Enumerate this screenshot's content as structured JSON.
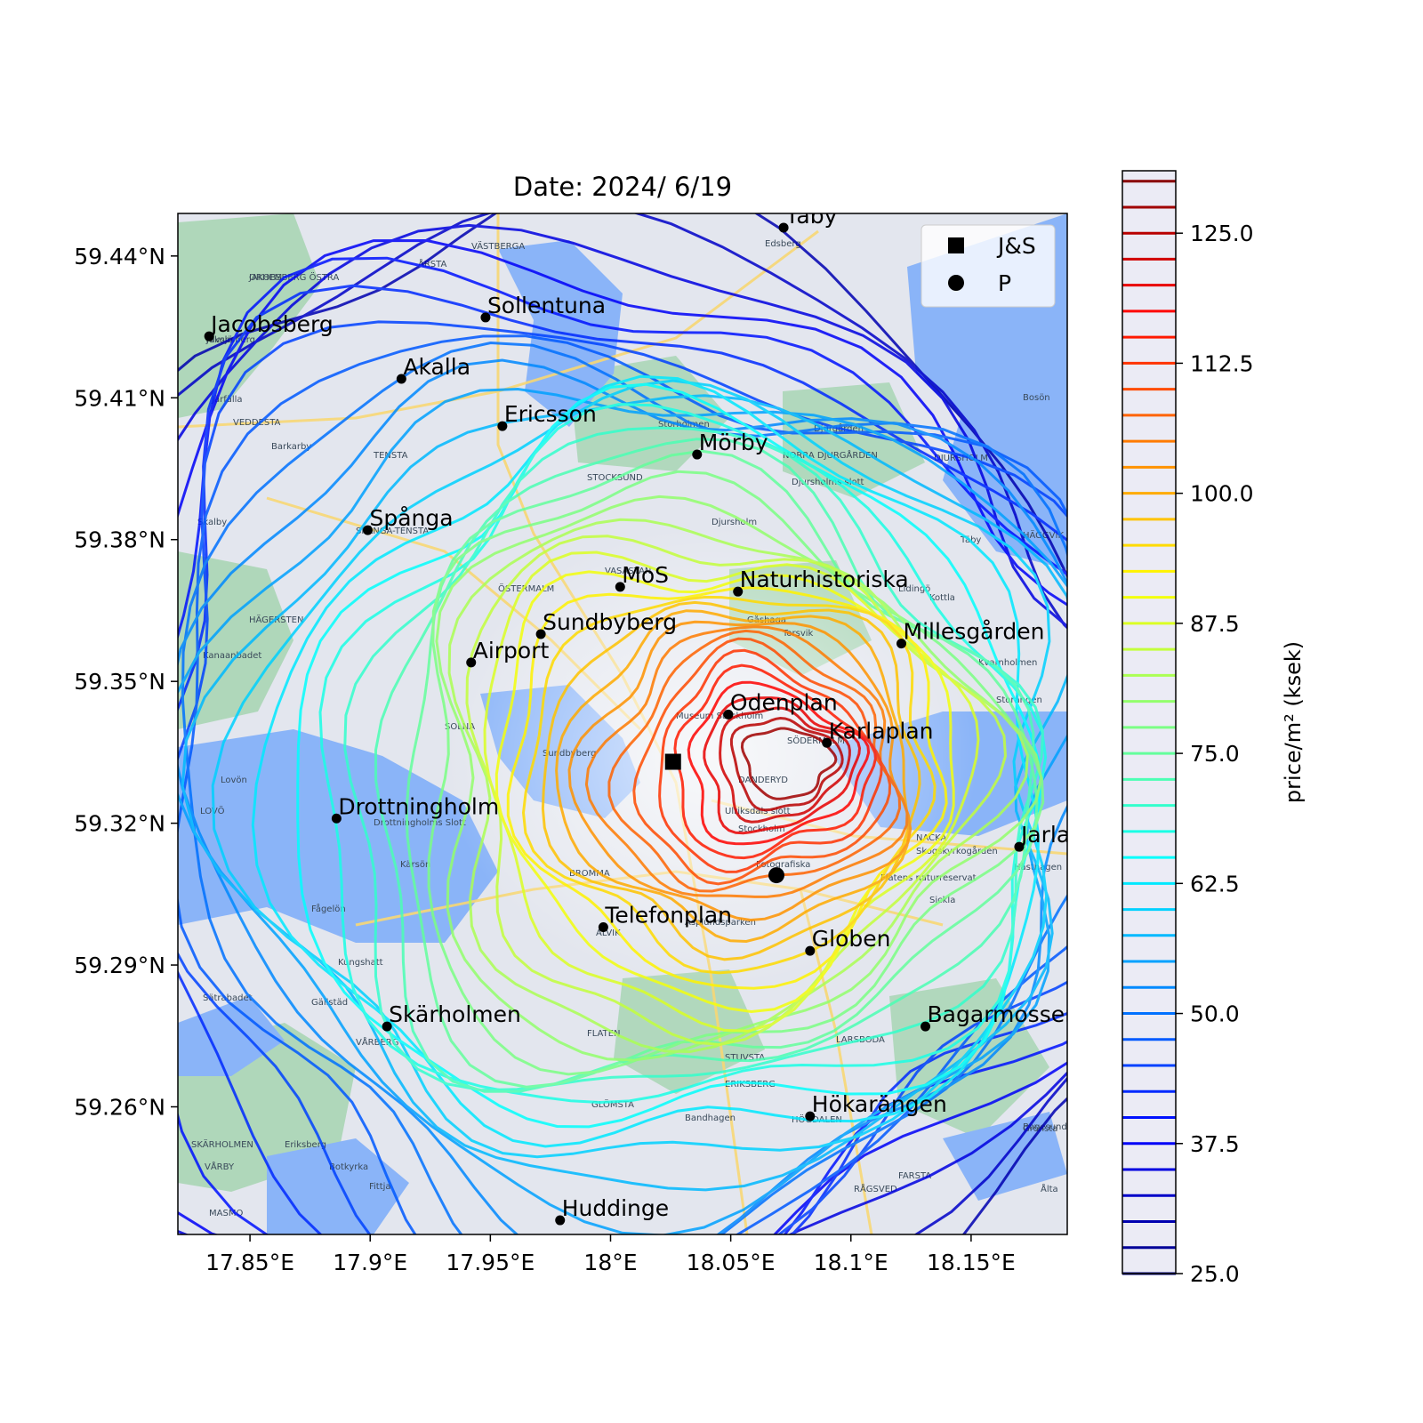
{
  "title": "Date: 2024/ 6/19",
  "axes": {
    "x_ticks": [
      {
        "value": 17.85,
        "label": "17.85°E"
      },
      {
        "value": 17.9,
        "label": "17.9°E"
      },
      {
        "value": 17.95,
        "label": "17.95°E"
      },
      {
        "value": 18.0,
        "label": "18°E"
      },
      {
        "value": 18.05,
        "label": "18.05°E"
      },
      {
        "value": 18.1,
        "label": "18.1°E"
      },
      {
        "value": 18.15,
        "label": "18.15°E"
      }
    ],
    "y_ticks": [
      {
        "value": 59.44,
        "label": "59.44°N"
      },
      {
        "value": 59.41,
        "label": "59.41°N"
      },
      {
        "value": 59.38,
        "label": "59.38°N"
      },
      {
        "value": 59.35,
        "label": "59.35°N"
      },
      {
        "value": 59.32,
        "label": "59.32°N"
      },
      {
        "value": 59.29,
        "label": "59.29°N"
      },
      {
        "value": 59.26,
        "label": "59.26°N"
      }
    ],
    "lon_range": [
      17.82,
      18.19
    ],
    "lat_range": [
      59.233,
      59.449
    ]
  },
  "legend": {
    "position": "top-right",
    "items": [
      {
        "marker": "square",
        "label": "J&S"
      },
      {
        "marker": "circle",
        "label": "P"
      }
    ]
  },
  "places": [
    {
      "name": "Täby",
      "lon": 18.072,
      "lat": 59.446
    },
    {
      "name": "Sollentuna",
      "lon": 17.948,
      "lat": 59.427
    },
    {
      "name": "Jacobsberg",
      "lon": 17.833,
      "lat": 59.423
    },
    {
      "name": "Akalla",
      "lon": 17.913,
      "lat": 59.414
    },
    {
      "name": "Ericsson",
      "lon": 17.955,
      "lat": 59.404
    },
    {
      "name": "Mörby",
      "lon": 18.036,
      "lat": 59.398
    },
    {
      "name": "Spånga",
      "lon": 17.899,
      "lat": 59.382
    },
    {
      "name": "MoS",
      "lon": 18.004,
      "lat": 59.37
    },
    {
      "name": "Naturhistoriska",
      "lon": 18.053,
      "lat": 59.369
    },
    {
      "name": "Sundbyberg",
      "lon": 17.971,
      "lat": 59.36
    },
    {
      "name": "Millesgården",
      "lon": 18.121,
      "lat": 59.358
    },
    {
      "name": "Airport",
      "lon": 17.942,
      "lat": 59.354
    },
    {
      "name": "Odenplan",
      "lon": 18.049,
      "lat": 59.343
    },
    {
      "name": "Karlaplan",
      "lon": 18.09,
      "lat": 59.337
    },
    {
      "name": "Drottningholm",
      "lon": 17.886,
      "lat": 59.321
    },
    {
      "name": "Jarlaberg",
      "lon": 18.17,
      "lat": 59.315
    },
    {
      "name": "Telefonplan",
      "lon": 17.997,
      "lat": 59.298
    },
    {
      "name": "Globen",
      "lon": 18.083,
      "lat": 59.293
    },
    {
      "name": "Bagarmossen",
      "lon": 18.131,
      "lat": 59.277
    },
    {
      "name": "Skärholmen",
      "lon": 17.907,
      "lat": 59.277
    },
    {
      "name": "Hökarängen",
      "lon": 18.083,
      "lat": 59.258
    },
    {
      "name": "Huddinge",
      "lon": 17.979,
      "lat": 59.236
    }
  ],
  "markers": {
    "js": {
      "lon": 18.026,
      "lat": 59.333
    },
    "p": {
      "lon": 18.069,
      "lat": 59.309
    }
  },
  "basemap_labels": [
    "JAKOBSBERG ÖSTRA",
    "Jakobsberg",
    "Järfälla",
    "VEDDESTA",
    "Barkarby",
    "TENSTA",
    "Skalby",
    "SPÅNGA-TENSTA",
    "HÄGERSTEN",
    "Kanaanbadet",
    "Lovön",
    "LOVÖ",
    "Drottningholms Slott",
    "Kärsön",
    "Fågelön",
    "Kungshatt",
    "Sätrabadet",
    "Gällstäd",
    "VÅRBERG",
    "SKÄRHOLMEN",
    "VÅRBY",
    "Eriksberg",
    "Botkyrka",
    "Fittja",
    "MASMO",
    "GLÖMSTA",
    "ERIKSBERG",
    "STUVSTA",
    "Bandhagen",
    "HÖGDALEN",
    "RÅGSVED",
    "FARSTA",
    "LARSBODA",
    "Flatens naturreservat",
    "Skogskyrkogården",
    "Sickla",
    "NACKA",
    "Hästhagen",
    "Kvarnholmen",
    "Storängen",
    "Lidingö",
    "Kottla",
    "Torsvik",
    "Gåshaga",
    "Djurgården",
    "NORRA DJURGÅRDEN",
    "Djursholms slott",
    "DJURSHOLM",
    "Djursholm",
    "Storholmen",
    "STOCKSUND",
    "DANDERYD",
    "Ulriksdals slott",
    "Stockholm",
    "Fotografiska",
    "Museum Stockholm",
    "SÖDERMALM",
    "VASASTAN",
    "ÖSTERMALM",
    "SOLNA",
    "Sundbyberg",
    "BROMMA",
    "ALVIK",
    "Asplundsparken",
    "VÄSTBERGA",
    "ÅRSTA",
    "Edsberg",
    "HÄGGVIK",
    "Täby",
    "Bosön",
    "Grönsta",
    "Bogesunds naturr",
    "Ålta",
    "FLATEN",
    "ORHEM",
    "Älvsjö"
  ],
  "colorbar": {
    "label": "price/m² (ksek)",
    "min": 25.0,
    "max": 131.0,
    "ticks": [
      {
        "value": 25.0,
        "label": "25.0"
      },
      {
        "value": 37.5,
        "label": "37.5"
      },
      {
        "value": 50.0,
        "label": "50.0"
      },
      {
        "value": 62.5,
        "label": "62.5"
      },
      {
        "value": 75.0,
        "label": "75.0"
      },
      {
        "value": 87.5,
        "label": "87.5"
      },
      {
        "value": 100.0,
        "label": "100.0"
      },
      {
        "value": 112.5,
        "label": "112.5"
      },
      {
        "value": 125.0,
        "label": "125.0"
      }
    ],
    "level_step": 2.5
  },
  "colors": {
    "water": "#8ab4f8",
    "land": "#e3e6ee",
    "park": "#a8d5b4",
    "road": "#f7d774",
    "colormap": "jet"
  }
}
